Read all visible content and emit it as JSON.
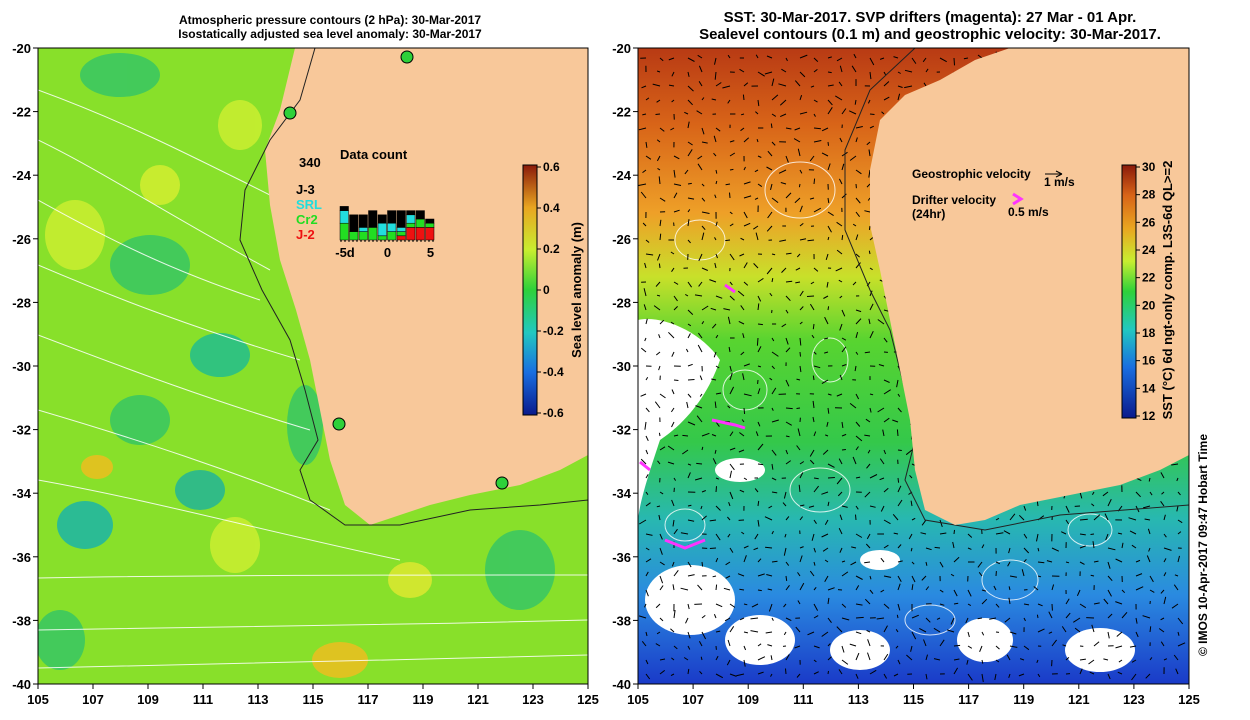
{
  "left_panel": {
    "title_line1": "Atmospheric pressure contours (2 hPa): 30-Mar-2017",
    "title_line2": "Isostatically adjusted sea level anomaly: 30-Mar-2017",
    "colorbar": {
      "label": "Sea level anomaly (m)",
      "ticks": [
        "0.6",
        "0.4",
        "0.2",
        "0",
        "-0.2",
        "-0.4",
        "-0.6"
      ],
      "range": [
        -0.6,
        0.6
      ]
    },
    "data_count": {
      "total": "340",
      "title": "Data count",
      "legend": [
        {
          "name": "J-3",
          "color": "#000000"
        },
        {
          "name": "SRL",
          "color": "#22dddd"
        },
        {
          "name": "Cr2",
          "color": "#22dd22"
        },
        {
          "name": "J-2",
          "color": "#ee1111"
        }
      ],
      "x_labels": [
        "-5d",
        "0",
        "5"
      ],
      "bars": [
        {
          "day": -5,
          "J-3": 1,
          "SRL": 3,
          "Cr2": 4,
          "J-2": 0
        },
        {
          "day": -4,
          "J-3": 4,
          "SRL": 0,
          "Cr2": 2,
          "J-2": 0
        },
        {
          "day": -3,
          "J-3": 3,
          "SRL": 1,
          "Cr2": 2,
          "J-2": 0
        },
        {
          "day": -2,
          "J-3": 4,
          "SRL": 0,
          "Cr2": 3,
          "J-2": 0
        },
        {
          "day": -1,
          "J-3": 2,
          "SRL": 3,
          "Cr2": 1,
          "J-2": 0
        },
        {
          "day": 0,
          "J-3": 3,
          "SRL": 2,
          "Cr2": 2,
          "J-2": 0
        },
        {
          "day": 1,
          "J-3": 4,
          "SRL": 1,
          "Cr2": 1,
          "J-2": 1
        },
        {
          "day": 2,
          "J-3": 1,
          "SRL": 2,
          "Cr2": 1,
          "J-2": 3
        },
        {
          "day": 3,
          "J-3": 2,
          "SRL": 0,
          "Cr2": 2,
          "J-2": 3
        },
        {
          "day": 4,
          "J-3": 1,
          "SRL": 0,
          "Cr2": 1,
          "J-2": 3
        }
      ]
    }
  },
  "right_panel": {
    "title_line1": "SST: 30-Mar-2017. SVP drifters (magenta): 27 Mar - 01 Apr.",
    "title_line2": "Sealevel contours (0.1 m) and geostrophic velocity: 30-Mar-2017.",
    "colorbar": {
      "label": "SST (°C) 6d ngt-only comp. L3S-6d QL>=2",
      "ticks": [
        "30",
        "28",
        "26",
        "24",
        "22",
        "20",
        "18",
        "16",
        "14",
        "12"
      ],
      "range": [
        12,
        30
      ]
    },
    "legend": {
      "geo_label": "Geostrophic velocity",
      "geo_scale": "1 m/s",
      "drifter_label1": "Drifter velocity",
      "drifter_label2": "(24hr)",
      "drifter_scale": "0.5 m/s"
    },
    "credit": "© IMOS 10-Apr-2017 09:47 Hobart Time"
  },
  "axes": {
    "lat_labels": [
      "-20",
      "-22",
      "-24",
      "-26",
      "-28",
      "-30",
      "-32",
      "-34",
      "-36",
      "-38",
      "-40"
    ],
    "lon_labels": [
      "105",
      "107",
      "109",
      "111",
      "113",
      "115",
      "117",
      "119",
      "121",
      "123",
      "125"
    ],
    "lat_range": [
      -40,
      -20
    ],
    "lon_range": [
      105,
      125
    ]
  },
  "colors": {
    "land": "#f8c89a",
    "sla_background": "#88e02a",
    "sst_north": "#d86418",
    "sst_south": "#2a8ae0",
    "drifter": "#ff33ff"
  }
}
